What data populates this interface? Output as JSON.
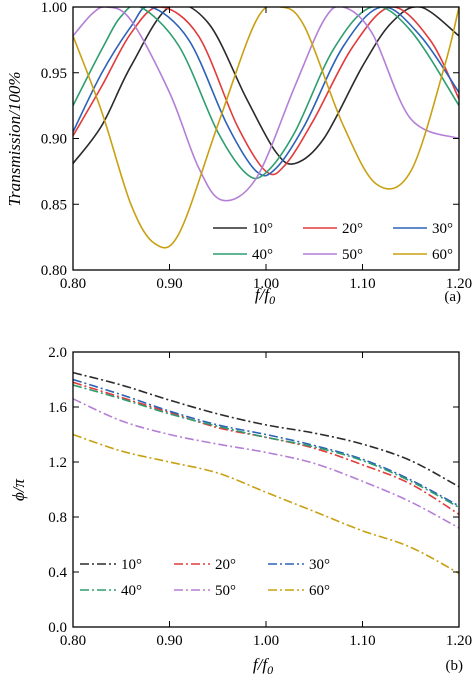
{
  "chart_data": [
    {
      "panel_label": "(a)",
      "type": "line",
      "xlabel": "f/f0",
      "xlabel_main": "f/f",
      "xlabel_sub": "0",
      "ylabel": "Transmission/100%",
      "xlim": [
        0.8,
        1.2
      ],
      "ylim": [
        0.8,
        1.0
      ],
      "xticks": [
        "0.80",
        "0.90",
        "1.00",
        "1.10",
        "1.20"
      ],
      "xtick_values": [
        0.8,
        0.9,
        1.0,
        1.1,
        1.2
      ],
      "yticks": [
        "0.80",
        "0.85",
        "0.90",
        "0.95",
        "1.00"
      ],
      "ytick_values": [
        0.8,
        0.85,
        0.9,
        0.95,
        1.0
      ],
      "legend_position": "bottom-right",
      "grid": false,
      "series": [
        {
          "name": "10°",
          "color": "#2b2b2b",
          "dash": "solid",
          "x": [
            0.8,
            0.83,
            0.86,
            0.9,
            0.94,
            0.98,
            1.01,
            1.03,
            1.06,
            1.1,
            1.13,
            1.16,
            1.2
          ],
          "y": [
            0.881,
            0.91,
            0.955,
            1.0,
            0.988,
            0.93,
            0.89,
            0.881,
            0.9,
            0.955,
            0.988,
            1.0,
            0.978
          ]
        },
        {
          "name": "20°",
          "color": "#e23b3b",
          "dash": "solid",
          "x": [
            0.8,
            0.83,
            0.86,
            0.89,
            0.93,
            0.97,
            1.0,
            1.02,
            1.05,
            1.09,
            1.13,
            1.17,
            1.2
          ],
          "y": [
            0.902,
            0.94,
            0.98,
            1.0,
            0.978,
            0.91,
            0.875,
            0.88,
            0.915,
            0.97,
            1.0,
            0.975,
            0.93
          ]
        },
        {
          "name": "30°",
          "color": "#2c63b8",
          "dash": "solid",
          "x": [
            0.8,
            0.83,
            0.86,
            0.88,
            0.92,
            0.96,
            0.99,
            1.01,
            1.04,
            1.08,
            1.12,
            1.16,
            1.2
          ],
          "y": [
            0.905,
            0.95,
            0.985,
            1.0,
            0.975,
            0.91,
            0.875,
            0.877,
            0.91,
            0.97,
            1.0,
            0.978,
            0.935
          ]
        },
        {
          "name": "40°",
          "color": "#2e9e70",
          "dash": "solid",
          "x": [
            0.8,
            0.83,
            0.85,
            0.87,
            0.91,
            0.95,
            0.98,
            1.0,
            1.03,
            1.07,
            1.11,
            1.15,
            1.2
          ],
          "y": [
            0.925,
            0.968,
            0.993,
            1.0,
            0.97,
            0.905,
            0.873,
            0.874,
            0.905,
            0.968,
            1.0,
            0.982,
            0.925
          ]
        },
        {
          "name": "50°",
          "color": "#b47fd6",
          "dash": "solid",
          "x": [
            0.8,
            0.82,
            0.835,
            0.86,
            0.9,
            0.93,
            0.955,
            0.99,
            1.03,
            1.06,
            1.08,
            1.11,
            1.15,
            1.2
          ],
          "y": [
            0.978,
            0.995,
            1.0,
            0.99,
            0.935,
            0.878,
            0.853,
            0.87,
            0.94,
            0.99,
            1.0,
            0.98,
            0.915,
            0.9
          ]
        },
        {
          "name": "60°",
          "color": "#c9a012",
          "dash": "solid",
          "x": [
            0.8,
            0.83,
            0.86,
            0.885,
            0.91,
            0.95,
            0.99,
            1.015,
            1.04,
            1.08,
            1.115,
            1.15,
            1.185,
            1.2
          ],
          "y": [
            0.978,
            0.92,
            0.85,
            0.82,
            0.828,
            0.91,
            0.99,
            1.0,
            0.985,
            0.91,
            0.865,
            0.875,
            0.955,
            1.0
          ]
        }
      ]
    },
    {
      "panel_label": "(b)",
      "type": "line",
      "xlabel": "f/f0",
      "xlabel_main": "f/f",
      "xlabel_sub": "0",
      "ylabel": "ϕ/π",
      "xlim": [
        0.8,
        1.2
      ],
      "ylim": [
        0.0,
        2.0
      ],
      "xticks": [
        "0.80",
        "0.90",
        "1.00",
        "1.10",
        "1.20"
      ],
      "xtick_values": [
        0.8,
        0.9,
        1.0,
        1.1,
        1.2
      ],
      "yticks": [
        "0.0",
        "0.4",
        "0.8",
        "1.2",
        "1.6",
        "2.0"
      ],
      "ytick_values": [
        0.0,
        0.4,
        0.8,
        1.2,
        1.6,
        2.0
      ],
      "legend_position": "bottom-left",
      "grid": false,
      "series": [
        {
          "name": "10°",
          "color": "#2b2b2b",
          "dash": "dashdot",
          "x": [
            0.8,
            0.85,
            0.9,
            0.95,
            1.0,
            1.05,
            1.1,
            1.15,
            1.2
          ],
          "y": [
            1.85,
            1.76,
            1.65,
            1.55,
            1.47,
            1.41,
            1.33,
            1.21,
            1.02
          ]
        },
        {
          "name": "20°",
          "color": "#e23b3b",
          "dash": "dashdot",
          "x": [
            0.8,
            0.85,
            0.9,
            0.95,
            1.0,
            1.05,
            1.1,
            1.15,
            1.2
          ],
          "y": [
            1.78,
            1.67,
            1.56,
            1.45,
            1.38,
            1.3,
            1.18,
            1.04,
            0.82
          ]
        },
        {
          "name": "30°",
          "color": "#2c63b8",
          "dash": "dashdot",
          "x": [
            0.8,
            0.85,
            0.9,
            0.95,
            1.0,
            1.05,
            1.1,
            1.15,
            1.2
          ],
          "y": [
            1.8,
            1.69,
            1.57,
            1.47,
            1.4,
            1.32,
            1.22,
            1.07,
            0.88
          ]
        },
        {
          "name": "40°",
          "color": "#2e9e70",
          "dash": "dashdot",
          "x": [
            0.8,
            0.85,
            0.9,
            0.95,
            1.0,
            1.05,
            1.1,
            1.15,
            1.2
          ],
          "y": [
            1.76,
            1.66,
            1.55,
            1.46,
            1.38,
            1.31,
            1.21,
            1.06,
            0.87
          ]
        },
        {
          "name": "50°",
          "color": "#b47fd6",
          "dash": "dashdot",
          "x": [
            0.8,
            0.85,
            0.9,
            0.95,
            1.0,
            1.05,
            1.1,
            1.15,
            1.2
          ],
          "y": [
            1.66,
            1.5,
            1.4,
            1.33,
            1.27,
            1.19,
            1.06,
            0.91,
            0.72
          ]
        },
        {
          "name": "60°",
          "color": "#c9a012",
          "dash": "dashdot",
          "x": [
            0.8,
            0.85,
            0.9,
            0.95,
            1.0,
            1.05,
            1.1,
            1.15,
            1.2
          ],
          "y": [
            1.4,
            1.28,
            1.2,
            1.12,
            0.98,
            0.84,
            0.7,
            0.58,
            0.39
          ]
        }
      ]
    }
  ]
}
